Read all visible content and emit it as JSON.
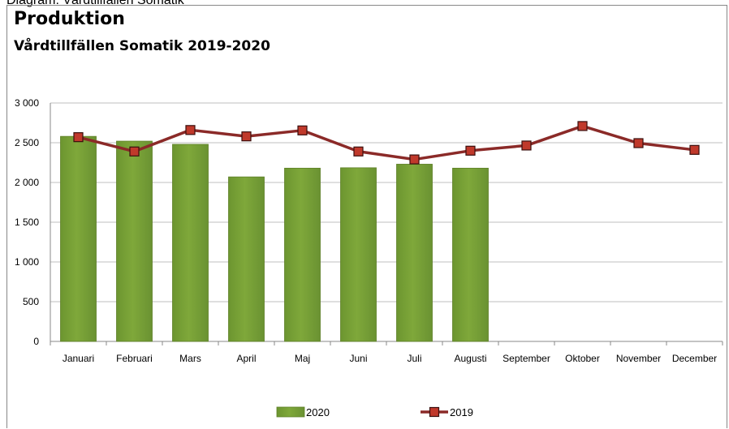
{
  "caption": "Diagram: Vårdtillfällen Somatik",
  "title": "Produktion",
  "subtitle": "Vårdtillfällen Somatik 2019-2020",
  "colors": {
    "bar": "#7fa83a",
    "bar_edge": "#5d7f26",
    "line": "#8b2a28",
    "marker": "#c0392b",
    "grid": "#bfbfbf"
  },
  "chart_data": {
    "type": "bar+line",
    "categories": [
      "Januari",
      "Februari",
      "Mars",
      "April",
      "Maj",
      "Juni",
      "Juli",
      "Augusti",
      "September",
      "Oktober",
      "November",
      "December"
    ],
    "series": [
      {
        "name": "2020",
        "type": "bar",
        "values": [
          2580,
          2520,
          2480,
          2070,
          2180,
          2185,
          2230,
          2180,
          null,
          null,
          null,
          null
        ]
      },
      {
        "name": "2019",
        "type": "line",
        "values": [
          2570,
          2390,
          2660,
          2580,
          2655,
          2390,
          2290,
          2400,
          2465,
          2710,
          2495,
          2410
        ]
      }
    ],
    "ylim": [
      0,
      3000
    ],
    "yticks": [
      0,
      500,
      1000,
      1500,
      2000,
      2500,
      3000
    ],
    "ytick_labels": [
      "0",
      "500",
      "1 000",
      "1 500",
      "2 000",
      "2 500",
      "3 000"
    ],
    "grid": true,
    "legend_position": "bottom"
  }
}
